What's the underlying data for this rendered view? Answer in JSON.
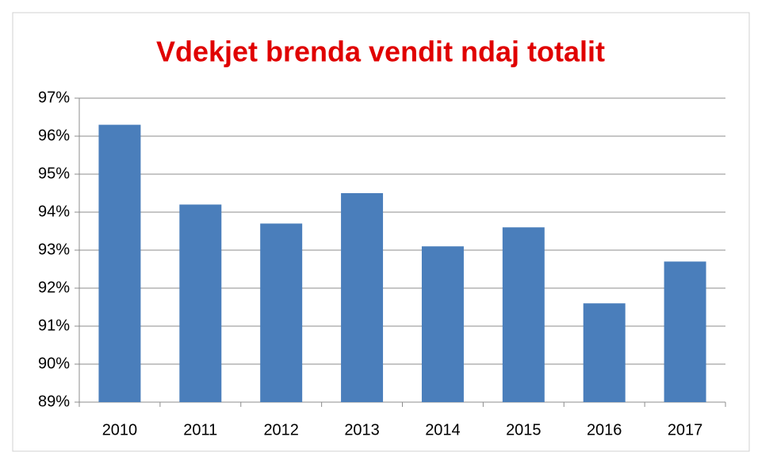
{
  "chart_data": {
    "type": "bar",
    "title": "Vdekjet brenda vendit ndaj totalit",
    "categories": [
      "2010",
      "2011",
      "2012",
      "2013",
      "2014",
      "2015",
      "2016",
      "2017"
    ],
    "values": [
      96.3,
      94.2,
      93.7,
      94.5,
      93.1,
      93.6,
      91.6,
      92.7
    ],
    "color": "#4a7ebb",
    "ylim": [
      89,
      97
    ],
    "yticks": [
      {
        "value": 89,
        "label": "89%"
      },
      {
        "value": 90,
        "label": "90%"
      },
      {
        "value": 91,
        "label": "91%"
      },
      {
        "value": 92,
        "label": "92%"
      },
      {
        "value": 93,
        "label": "93%"
      },
      {
        "value": 94,
        "label": "94%"
      },
      {
        "value": 95,
        "label": "95%"
      },
      {
        "value": 96,
        "label": "96%"
      },
      {
        "value": 97,
        "label": "97%"
      }
    ],
    "grid": true
  }
}
